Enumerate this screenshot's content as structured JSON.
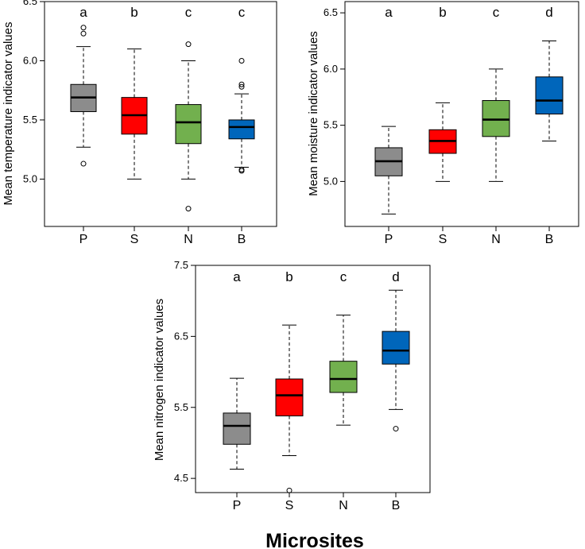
{
  "figure": {
    "xlabel": "Microsites"
  },
  "chart_data": [
    {
      "type": "boxplot",
      "id": "temperature",
      "ylabel": "Mean temperature indicator values",
      "ylim": [
        4.6,
        6.5
      ],
      "yticks": [
        5.0,
        5.5,
        6.0,
        6.5
      ],
      "ytick_labels": [
        "5.0",
        "5.5",
        "6.0",
        "6.5"
      ],
      "categories": [
        "P",
        "S",
        "N",
        "B"
      ],
      "letters": [
        "a",
        "b",
        "c",
        "c"
      ],
      "colors": [
        "#8c8c8c",
        "#ff0000",
        "#72b04e",
        "#0066bb"
      ],
      "boxes": [
        {
          "lower_whisker": 5.27,
          "q1": 5.57,
          "median": 5.69,
          "q3": 5.8,
          "upper_whisker": 6.12,
          "outliers": [
            6.28,
            6.23,
            5.13
          ]
        },
        {
          "lower_whisker": 5.0,
          "q1": 5.38,
          "median": 5.54,
          "q3": 5.69,
          "upper_whisker": 6.1,
          "outliers": []
        },
        {
          "lower_whisker": 5.0,
          "q1": 5.3,
          "median": 5.48,
          "q3": 5.63,
          "upper_whisker": 6.0,
          "outliers": [
            6.14,
            4.75
          ]
        },
        {
          "lower_whisker": 5.1,
          "q1": 5.34,
          "median": 5.44,
          "q3": 5.5,
          "upper_whisker": 5.72,
          "outliers": [
            6.0,
            5.8,
            5.78,
            5.08,
            5.07
          ]
        }
      ]
    },
    {
      "type": "boxplot",
      "id": "moisture",
      "ylabel": "Mean moisture indicator values",
      "ylim": [
        4.6,
        6.6
      ],
      "yticks": [
        5.0,
        5.5,
        6.0,
        6.5
      ],
      "ytick_labels": [
        "5.0",
        "5.5",
        "6.0",
        "6.5"
      ],
      "categories": [
        "P",
        "S",
        "N",
        "B"
      ],
      "letters": [
        "a",
        "b",
        "c",
        "d"
      ],
      "colors": [
        "#8c8c8c",
        "#ff0000",
        "#72b04e",
        "#0066bb"
      ],
      "boxes": [
        {
          "lower_whisker": 4.71,
          "q1": 5.05,
          "median": 5.18,
          "q3": 5.3,
          "upper_whisker": 5.49,
          "outliers": []
        },
        {
          "lower_whisker": 5.0,
          "q1": 5.25,
          "median": 5.36,
          "q3": 5.46,
          "upper_whisker": 5.7,
          "outliers": []
        },
        {
          "lower_whisker": 5.0,
          "q1": 5.4,
          "median": 5.55,
          "q3": 5.72,
          "upper_whisker": 6.0,
          "outliers": []
        },
        {
          "lower_whisker": 5.36,
          "q1": 5.6,
          "median": 5.72,
          "q3": 5.93,
          "upper_whisker": 6.25,
          "outliers": []
        }
      ]
    },
    {
      "type": "boxplot",
      "id": "nitrogen",
      "ylabel": "Mean nitrogen indicator values",
      "ylim": [
        4.3,
        7.5
      ],
      "yticks": [
        4.5,
        5.5,
        6.5,
        7.5
      ],
      "ytick_labels": [
        "4.5",
        "5.5",
        "6.5",
        "7.5"
      ],
      "categories": [
        "P",
        "S",
        "N",
        "B"
      ],
      "letters": [
        "a",
        "b",
        "c",
        "d"
      ],
      "colors": [
        "#8c8c8c",
        "#ff0000",
        "#72b04e",
        "#0066bb"
      ],
      "boxes": [
        {
          "lower_whisker": 4.63,
          "q1": 4.98,
          "median": 5.24,
          "q3": 5.42,
          "upper_whisker": 5.91,
          "outliers": []
        },
        {
          "lower_whisker": 4.82,
          "q1": 5.38,
          "median": 5.67,
          "q3": 5.9,
          "upper_whisker": 6.66,
          "outliers": [
            4.33
          ]
        },
        {
          "lower_whisker": 5.25,
          "q1": 5.71,
          "median": 5.9,
          "q3": 6.15,
          "upper_whisker": 6.8,
          "outliers": []
        },
        {
          "lower_whisker": 5.47,
          "q1": 6.11,
          "median": 6.3,
          "q3": 6.57,
          "upper_whisker": 7.15,
          "outliers": [
            5.2
          ]
        }
      ]
    }
  ]
}
